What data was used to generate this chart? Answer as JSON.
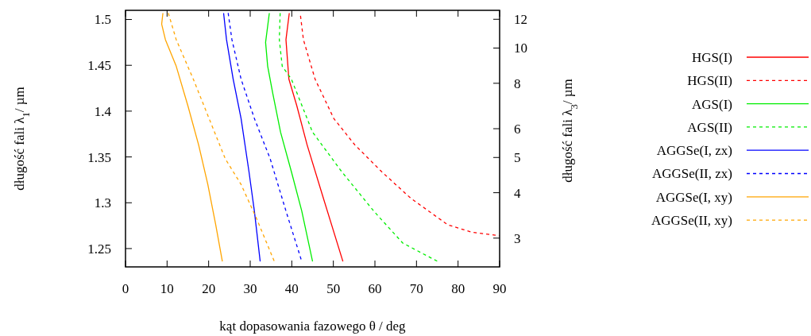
{
  "chart_data": {
    "type": "line",
    "xlabel": "kąt dopasowania fazowego θ / deg",
    "ylabel": "długość fali λ$_{1}$/ µm",
    "y2label": "długość fali λ$_{3}$/ µm",
    "xlim": [
      0,
      90
    ],
    "xticks": [
      0,
      10,
      20,
      30,
      40,
      50,
      60,
      70,
      80,
      90
    ],
    "ylim": [
      1.23,
      1.51
    ],
    "yticks": [
      1.25,
      1.3,
      1.35,
      1.4,
      1.45,
      1.5
    ],
    "y2lim": [
      2.5,
      12.7
    ],
    "y2ticks": [
      3,
      4,
      5,
      6,
      8,
      10,
      12
    ],
    "log": "y2",
    "legend": "right",
    "grid": false,
    "series": [
      {
        "name": "HGS(I)",
        "color": "#ff0000",
        "line_style": "solid",
        "x": [
          39.4,
          38.6,
          39.3,
          41.2,
          43.7,
          47.6,
          52.3
        ],
        "values": [
          1.507,
          1.478,
          1.435,
          1.406,
          1.363,
          1.305,
          1.236
        ]
      },
      {
        "name": "HGS(II)",
        "color": "#ff0000",
        "line_style": "dashed",
        "x": [
          42.1,
          42.8,
          45.6,
          50.1,
          55.2,
          61.6,
          68.6,
          77.5,
          83.2,
          89.9
        ],
        "values": [
          1.504,
          1.478,
          1.435,
          1.392,
          1.363,
          1.334,
          1.305,
          1.276,
          1.268,
          1.264
        ]
      },
      {
        "name": "AGS(I)",
        "color": "#00ee00",
        "line_style": "solid",
        "x": [
          34.6,
          33.7,
          34.2,
          35.4,
          37.3,
          39.9,
          42.4,
          45.0
        ],
        "values": [
          1.507,
          1.475,
          1.449,
          1.42,
          1.377,
          1.334,
          1.291,
          1.236
        ]
      },
      {
        "name": "AGS(II)",
        "color": "#00ee00",
        "line_style": "dashed",
        "x": [
          37.2,
          37.0,
          37.7,
          39.9,
          45.0,
          52.0,
          59.7,
          66.7,
          75.5
        ],
        "values": [
          1.507,
          1.478,
          1.449,
          1.435,
          1.377,
          1.334,
          1.291,
          1.256,
          1.235
        ]
      },
      {
        "name": "AGGSe(I, zx)",
        "color": "#0000ff",
        "line_style": "solid",
        "x": [
          23.6,
          24.3,
          25.9,
          27.8,
          29.7,
          31.0,
          32.4
        ],
        "values": [
          1.507,
          1.478,
          1.435,
          1.392,
          1.334,
          1.291,
          1.236
        ]
      },
      {
        "name": "AGGSe(II, zx)",
        "color": "#0000ff",
        "line_style": "dashed",
        "x": [
          24.7,
          25.6,
          27.8,
          31.0,
          34.8,
          38.6,
          42.4
        ],
        "values": [
          1.507,
          1.478,
          1.435,
          1.392,
          1.348,
          1.291,
          1.236
        ]
      },
      {
        "name": "AGGSe(I, xy)",
        "color": "#ffa500",
        "line_style": "solid",
        "x": [
          9.0,
          8.7,
          9.6,
          12.2,
          15.0,
          17.6,
          19.8,
          21.7,
          23.3
        ],
        "values": [
          1.507,
          1.495,
          1.478,
          1.449,
          1.406,
          1.363,
          1.32,
          1.276,
          1.236
        ]
      },
      {
        "name": "AGGSe(II, xy)",
        "color": "#ffa500",
        "line_style": "dashed",
        "x": [
          10.3,
          12.2,
          16.3,
          20.1,
          24.0,
          27.8,
          31.6,
          35.8
        ],
        "values": [
          1.507,
          1.478,
          1.435,
          1.392,
          1.348,
          1.32,
          1.282,
          1.236
        ]
      }
    ]
  }
}
